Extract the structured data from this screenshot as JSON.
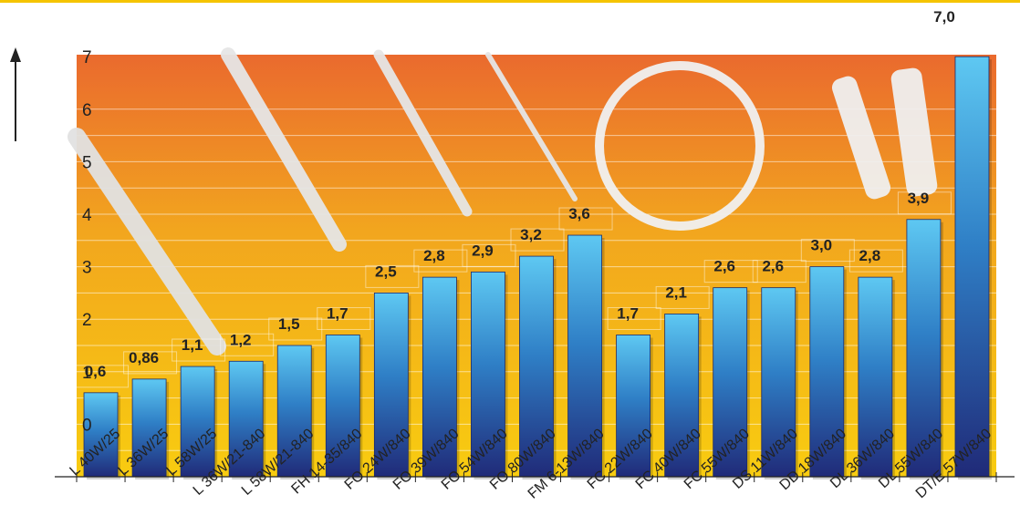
{
  "chart_data": {
    "type": "bar",
    "categories": [
      "L 40W/25",
      "L 36W/25",
      "L 58W/25",
      "L 36W/21-840",
      "L 58W/21-840",
      "FH 14-35/840",
      "FO 24W/840",
      "FO 39W/840",
      "FO 54W/840",
      "FO 80W/840",
      "FM 6-13W/840",
      "FC 22W/840",
      "FC 40W/840",
      "FC 55W/840",
      "DS 11W/840",
      "DD 18W/840",
      "DL 36W/840",
      "DL 55W/840",
      "DT/E 57W/840"
    ],
    "values": [
      0.6,
      0.86,
      1.1,
      1.2,
      1.5,
      1.7,
      2.5,
      2.8,
      2.9,
      3.2,
      3.6,
      1.7,
      2.1,
      2.6,
      2.6,
      3.0,
      2.8,
      3.9,
      7.0
    ],
    "data_labels": [
      "0,6",
      "0,86",
      "1,1",
      "1,2",
      "1,5",
      "1,7",
      "2,5",
      "2,8",
      "2,9",
      "3,2",
      "3,6",
      "1,7",
      "2,1",
      "2,6",
      "2,6",
      "3,0",
      "2,8",
      "3,9",
      "7,0"
    ],
    "y_ticks": [
      "0",
      "1",
      "2",
      "3",
      "4",
      "5",
      "6",
      "7"
    ],
    "ylim": [
      -1,
      7
    ],
    "title": "",
    "xlabel": "",
    "ylabel": "",
    "grid": true,
    "colors": {
      "bar_top": "#5ec8f2",
      "bar_mid": "#2f7fc6",
      "bar_bottom": "#202a78",
      "bg_top": "#ea6a2e",
      "bg_mid": "#f2a61e",
      "bg_bottom": "#f8cc10",
      "accent_line": "#f5c400"
    }
  }
}
